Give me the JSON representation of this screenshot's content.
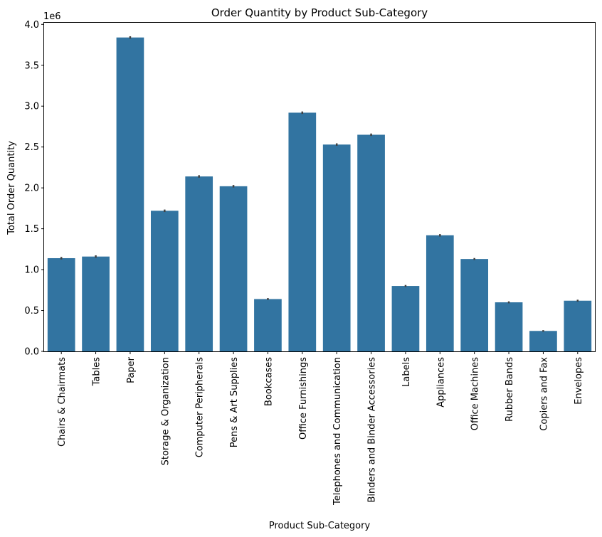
{
  "chart_data": {
    "type": "bar",
    "title": "Order Quantity by Product Sub-Category",
    "xlabel": "Product Sub-Category",
    "ylabel": "Total Order Quantity",
    "offset_label": "1e6",
    "ylim": [
      0,
      4.02
    ],
    "yticks": [
      0.0,
      0.5,
      1.0,
      1.5,
      2.0,
      2.5,
      3.0,
      3.5,
      4.0
    ],
    "ytick_labels": [
      "0.0",
      "0.5",
      "1.0",
      "1.5",
      "2.0",
      "2.5",
      "3.0",
      "3.5",
      "4.0"
    ],
    "grid": false,
    "bar_color": "#3274a1",
    "errorbar_color": "#424242",
    "categories": [
      "Chairs & Chairmats",
      "Tables",
      "Paper",
      "Storage & Organization",
      "Computer Peripherals",
      "Pens & Art Supplies",
      "Bookcases",
      "Office Furnishings",
      "Telephones and Communication",
      "Binders and Binder Accessories",
      "Labels",
      "Appliances",
      "Office Machines",
      "Rubber Bands",
      "Copiers and Fax",
      "Envelopes"
    ],
    "values": [
      1.14,
      1.16,
      3.84,
      1.72,
      2.14,
      2.02,
      0.64,
      2.92,
      2.53,
      2.65,
      0.8,
      1.42,
      1.13,
      0.6,
      0.25,
      0.62
    ],
    "errors": [
      0.015,
      0.015,
      0.015,
      0.015,
      0.015,
      0.015,
      0.012,
      0.015,
      0.015,
      0.015,
      0.012,
      0.015,
      0.012,
      0.012,
      0.01,
      0.012
    ]
  }
}
